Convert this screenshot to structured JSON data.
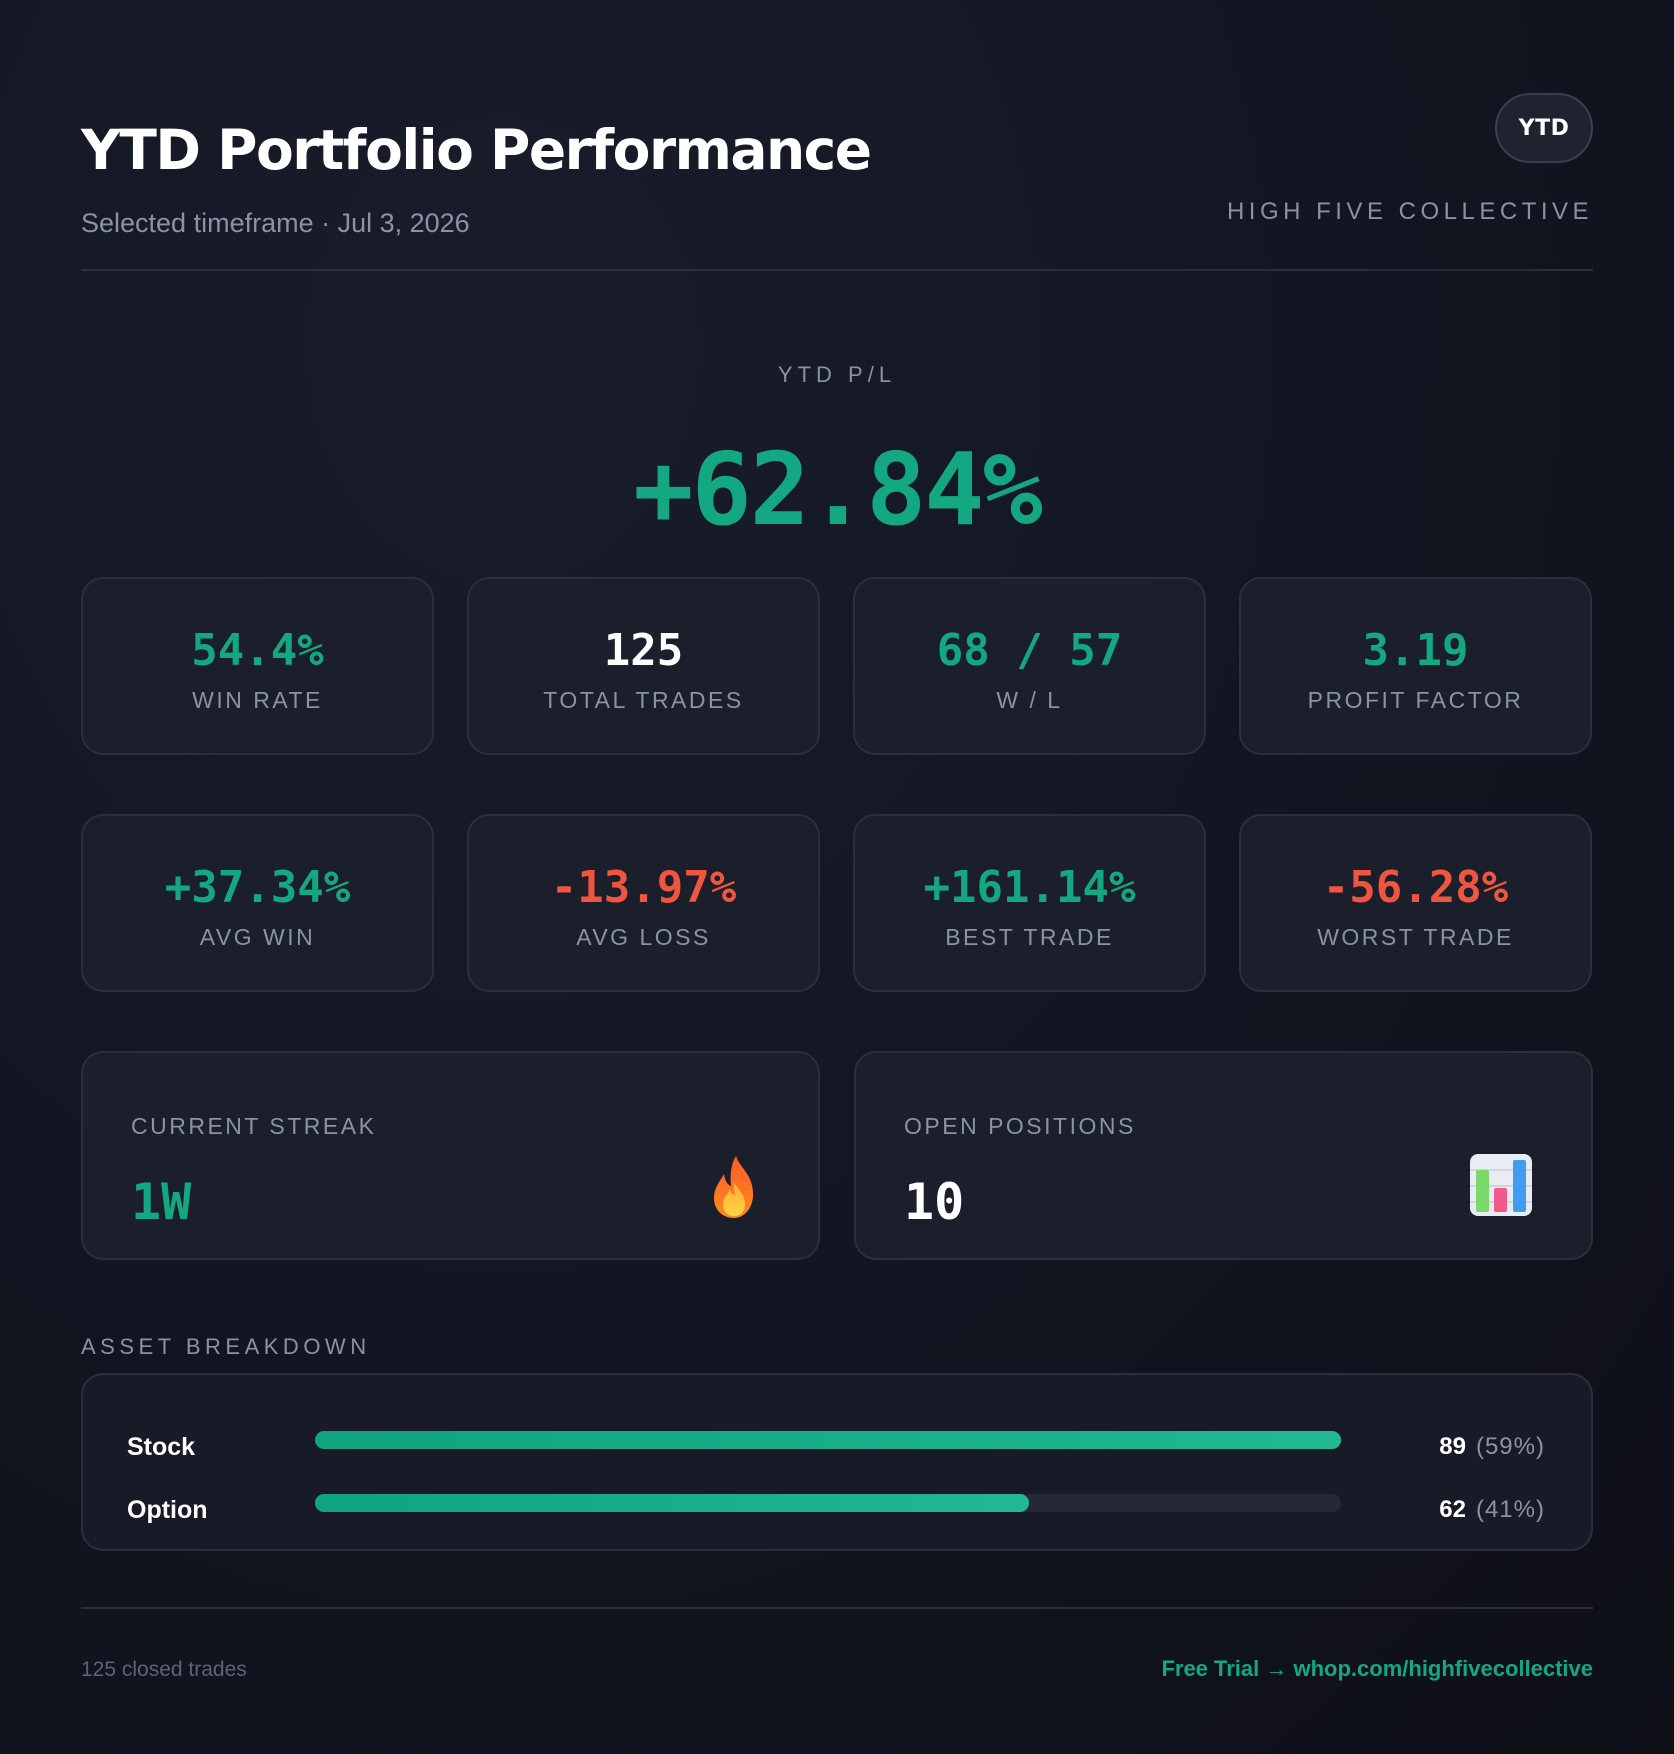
{
  "header": {
    "title": "YTD Portfolio Performance",
    "subtitle": "Selected timeframe · Jul 3, 2026",
    "badge": "YTD",
    "brand": "HIGH FIVE COLLECTIVE"
  },
  "hero": {
    "label": "YTD P/L",
    "value": "+62.84%"
  },
  "stats_row1": [
    {
      "value": "54.4%",
      "label": "WIN RATE",
      "tone": "green"
    },
    {
      "value": "125",
      "label": "TOTAL TRADES",
      "tone": "white"
    },
    {
      "value": "68 / 57",
      "label": "W / L",
      "tone": "green"
    },
    {
      "value": "3.19",
      "label": "PROFIT FACTOR",
      "tone": "green"
    }
  ],
  "stats_row2": [
    {
      "value": "+37.34%",
      "label": "AVG WIN",
      "tone": "green"
    },
    {
      "value": "-13.97%",
      "label": "AVG LOSS",
      "tone": "red"
    },
    {
      "value": "+161.14%",
      "label": "BEST TRADE",
      "tone": "green"
    },
    {
      "value": "-56.28%",
      "label": "WORST TRADE",
      "tone": "red"
    }
  ],
  "streak": {
    "label": "CURRENT STREAK",
    "value": "1W",
    "icon": "fire-icon"
  },
  "open_positions": {
    "label": "OPEN POSITIONS",
    "value": "10",
    "icon": "bar-chart-icon"
  },
  "assets": {
    "title": "ASSET BREAKDOWN",
    "rows": [
      {
        "name": "Stock",
        "count": "89",
        "percent": "(59%)",
        "fill": 1.0
      },
      {
        "name": "Option",
        "count": "62",
        "percent": "(41%)",
        "fill": 0.696
      }
    ]
  },
  "footer": {
    "left": "125 closed trades",
    "right": "Free Trial → whop.com/highfivecollective"
  },
  "colors": {
    "positive": "#14a882",
    "negative": "#f0553f",
    "background": "#131623",
    "card": "#1b1f2c"
  }
}
